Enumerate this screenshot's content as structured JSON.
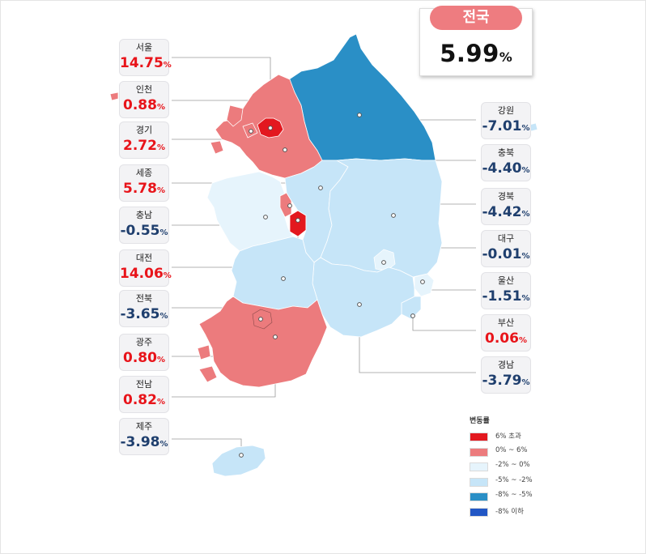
{
  "national": {
    "title": "전국",
    "value": "5.99",
    "unit": "%"
  },
  "regions": {
    "seoul": {
      "name": "서울",
      "value": "14.75",
      "unit": "%",
      "sign": "pos",
      "category": "over6"
    },
    "incheon": {
      "name": "인천",
      "value": "0.88",
      "unit": "%",
      "sign": "pos",
      "category": "0to6"
    },
    "gyeonggi": {
      "name": "경기",
      "value": "2.72",
      "unit": "%",
      "sign": "pos",
      "category": "0to6"
    },
    "sejong": {
      "name": "세종",
      "value": "5.78",
      "unit": "%",
      "sign": "pos",
      "category": "0to6"
    },
    "chungnam": {
      "name": "충남",
      "value": "-0.55",
      "unit": "%",
      "sign": "neg",
      "category": "m2to0"
    },
    "daejeon": {
      "name": "대전",
      "value": "14.06",
      "unit": "%",
      "sign": "pos",
      "category": "over6"
    },
    "jeonbuk": {
      "name": "전북",
      "value": "-3.65",
      "unit": "%",
      "sign": "neg",
      "category": "m5tom2"
    },
    "gwangju": {
      "name": "광주",
      "value": "0.80",
      "unit": "%",
      "sign": "pos",
      "category": "0to6"
    },
    "jeonnam": {
      "name": "전남",
      "value": "0.82",
      "unit": "%",
      "sign": "pos",
      "category": "0to6"
    },
    "jeju": {
      "name": "제주",
      "value": "-3.98",
      "unit": "%",
      "sign": "neg",
      "category": "m5tom2"
    },
    "gangwon": {
      "name": "강원",
      "value": "-7.01",
      "unit": "%",
      "sign": "neg",
      "category": "m8tom5"
    },
    "chungbuk": {
      "name": "충북",
      "value": "-4.40",
      "unit": "%",
      "sign": "neg",
      "category": "m5tom2"
    },
    "gyeongbuk": {
      "name": "경북",
      "value": "-4.42",
      "unit": "%",
      "sign": "neg",
      "category": "m5tom2"
    },
    "daegu": {
      "name": "대구",
      "value": "-0.01",
      "unit": "%",
      "sign": "neg",
      "category": "m2to0"
    },
    "ulsan": {
      "name": "울산",
      "value": "-1.51",
      "unit": "%",
      "sign": "neg",
      "category": "m2to0"
    },
    "busan": {
      "name": "부산",
      "value": "0.06",
      "unit": "%",
      "sign": "pos",
      "category": "0to6"
    },
    "gyeongnam": {
      "name": "경남",
      "value": "-3.79",
      "unit": "%",
      "sign": "neg",
      "category": "m5tom2"
    }
  },
  "legend": {
    "title": "변동률",
    "items": [
      {
        "label": "6% 초과",
        "color": "#e3181f"
      },
      {
        "label": "0% ~ 6%",
        "color": "#ec7b7d"
      },
      {
        "label": "-2% ~ 0%",
        "color": "#e6f4fc"
      },
      {
        "label": "-5% ~ -2%",
        "color": "#c6e5f8"
      },
      {
        "label": "-8% ~ -5%",
        "color": "#2a8fc6"
      },
      {
        "label": "-8% 이하",
        "color": "#2257c5"
      }
    ]
  },
  "colors": {
    "over6": "#e3181f",
    "0to6": "#ec7b7d",
    "m2to0": "#e6f4fc",
    "m5tom2": "#c6e5f8",
    "m8tom5": "#2a8fc6",
    "under8": "#2257c5",
    "positive_text": "#e8141a",
    "negative_text": "#1f3f6e",
    "badge": "#ee7c80"
  }
}
